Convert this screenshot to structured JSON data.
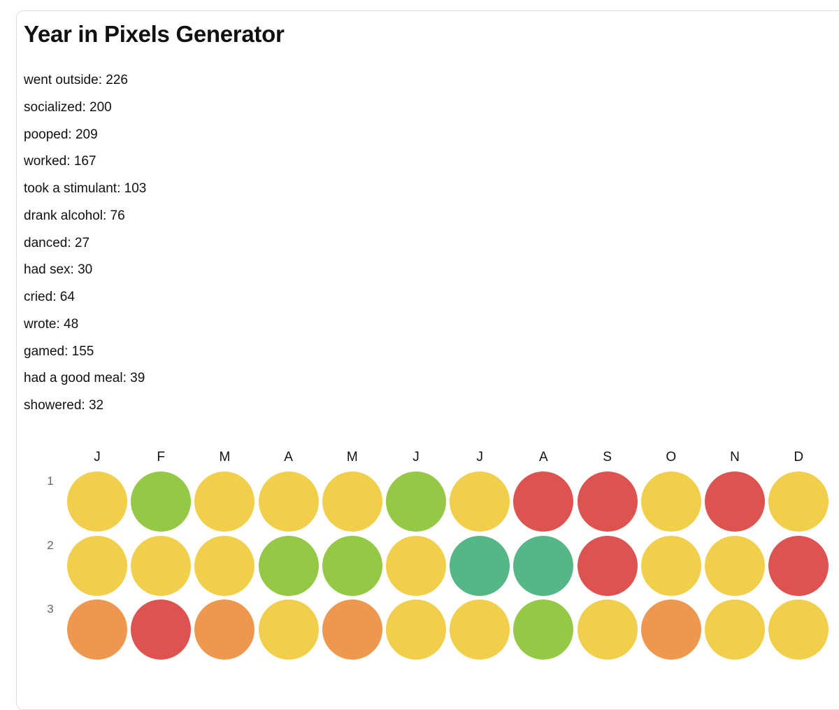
{
  "app": {
    "title": "Year in Pixels Generator"
  },
  "stats": [
    {
      "label": "went outside",
      "value": 226
    },
    {
      "label": "socialized",
      "value": 200
    },
    {
      "label": "pooped",
      "value": 209
    },
    {
      "label": "worked",
      "value": 167
    },
    {
      "label": "took a stimulant",
      "value": 103
    },
    {
      "label": "drank alcohol",
      "value": 76
    },
    {
      "label": "danced",
      "value": 27
    },
    {
      "label": "had sex",
      "value": 30
    },
    {
      "label": "cried",
      "value": 64
    },
    {
      "label": "wrote",
      "value": 48
    },
    {
      "label": "gamed",
      "value": 155
    },
    {
      "label": "had a good meal",
      "value": 39
    },
    {
      "label": "showered",
      "value": 32
    }
  ],
  "colors": {
    "yellow": "#f2cf4a",
    "lime": "#95c945",
    "red": "#de524f",
    "teal": "#55b686",
    "orange": "#ee984f"
  },
  "calendar": {
    "months": [
      "J",
      "F",
      "M",
      "A",
      "M",
      "J",
      "J",
      "A",
      "S",
      "O",
      "N",
      "D"
    ],
    "days": [
      {
        "label": "1",
        "moods": [
          "yellow",
          "lime",
          "yellow",
          "yellow",
          "yellow",
          "lime",
          "yellow",
          "red",
          "red",
          "yellow",
          "red",
          "yellow"
        ]
      },
      {
        "label": "2",
        "moods": [
          "yellow",
          "yellow",
          "yellow",
          "lime",
          "lime",
          "yellow",
          "teal",
          "teal",
          "red",
          "yellow",
          "yellow",
          "red"
        ]
      },
      {
        "label": "3",
        "moods": [
          "orange",
          "red",
          "orange",
          "yellow",
          "orange",
          "yellow",
          "yellow",
          "lime",
          "yellow",
          "orange",
          "yellow",
          "yellow"
        ]
      }
    ]
  }
}
